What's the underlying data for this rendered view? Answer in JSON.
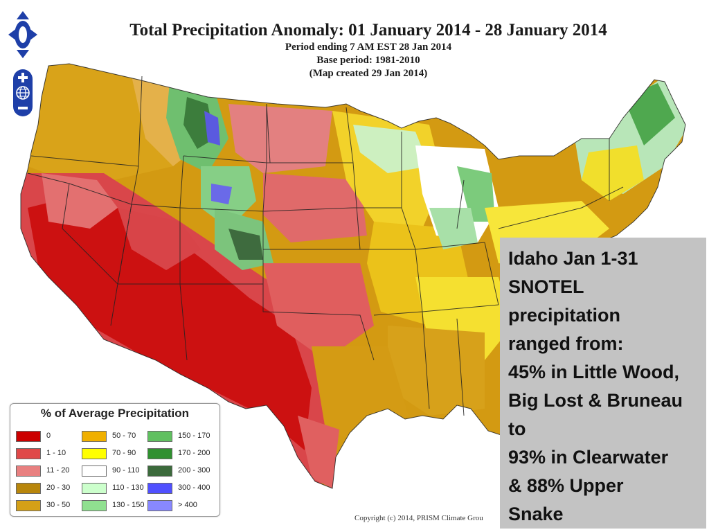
{
  "map": {
    "title": "Total Precipitation Anomaly: 01 January 2014 - 28 January 2014",
    "sublines": [
      "Period ending 7 AM EST 28 Jan 2014",
      "Base period: 1981-2010",
      "(Map created 29 Jan 2014)"
    ],
    "copyright": "Copyright (c) 2014, PRISM Climate Grou"
  },
  "nav_icons": {
    "pan": "pan-arrows-icon",
    "zoom_in": "zoom-in-icon",
    "globe": "globe-icon",
    "zoom_out": "zoom-out-icon"
  },
  "legend": {
    "title": "% of Average Precipitation",
    "items": [
      {
        "label": "0",
        "color": "#cc0000"
      },
      {
        "label": "1 - 10",
        "color": "#e04848"
      },
      {
        "label": "11 - 20",
        "color": "#e88080"
      },
      {
        "label": "20 - 30",
        "color": "#b8860b"
      },
      {
        "label": "30 - 50",
        "color": "#d4a017"
      },
      {
        "label": "50 - 70",
        "color": "#f0b000"
      },
      {
        "label": "70 - 90",
        "color": "#ffff00"
      },
      {
        "label": "90 - 110",
        "color": "#ffffff"
      },
      {
        "label": "110 - 130",
        "color": "#ccffcc"
      },
      {
        "label": "130 - 150",
        "color": "#90e090"
      },
      {
        "label": "150 - 170",
        "color": "#60c060"
      },
      {
        "label": "170 - 200",
        "color": "#309030"
      },
      {
        "label": "200 - 300",
        "color": "#3c6a3c"
      },
      {
        "label": "300 - 400",
        "color": "#5050ff"
      },
      {
        "label": "> 400",
        "color": "#8888ff"
      }
    ]
  },
  "callout": {
    "lines": [
      "Idaho Jan 1-31",
      "SNOTEL",
      "precipitation",
      "ranged from:",
      "45% in Little Wood,",
      "Big Lost & Bruneau",
      "to",
      "93% in Clearwater",
      "& 88% Upper",
      "Snake"
    ]
  }
}
